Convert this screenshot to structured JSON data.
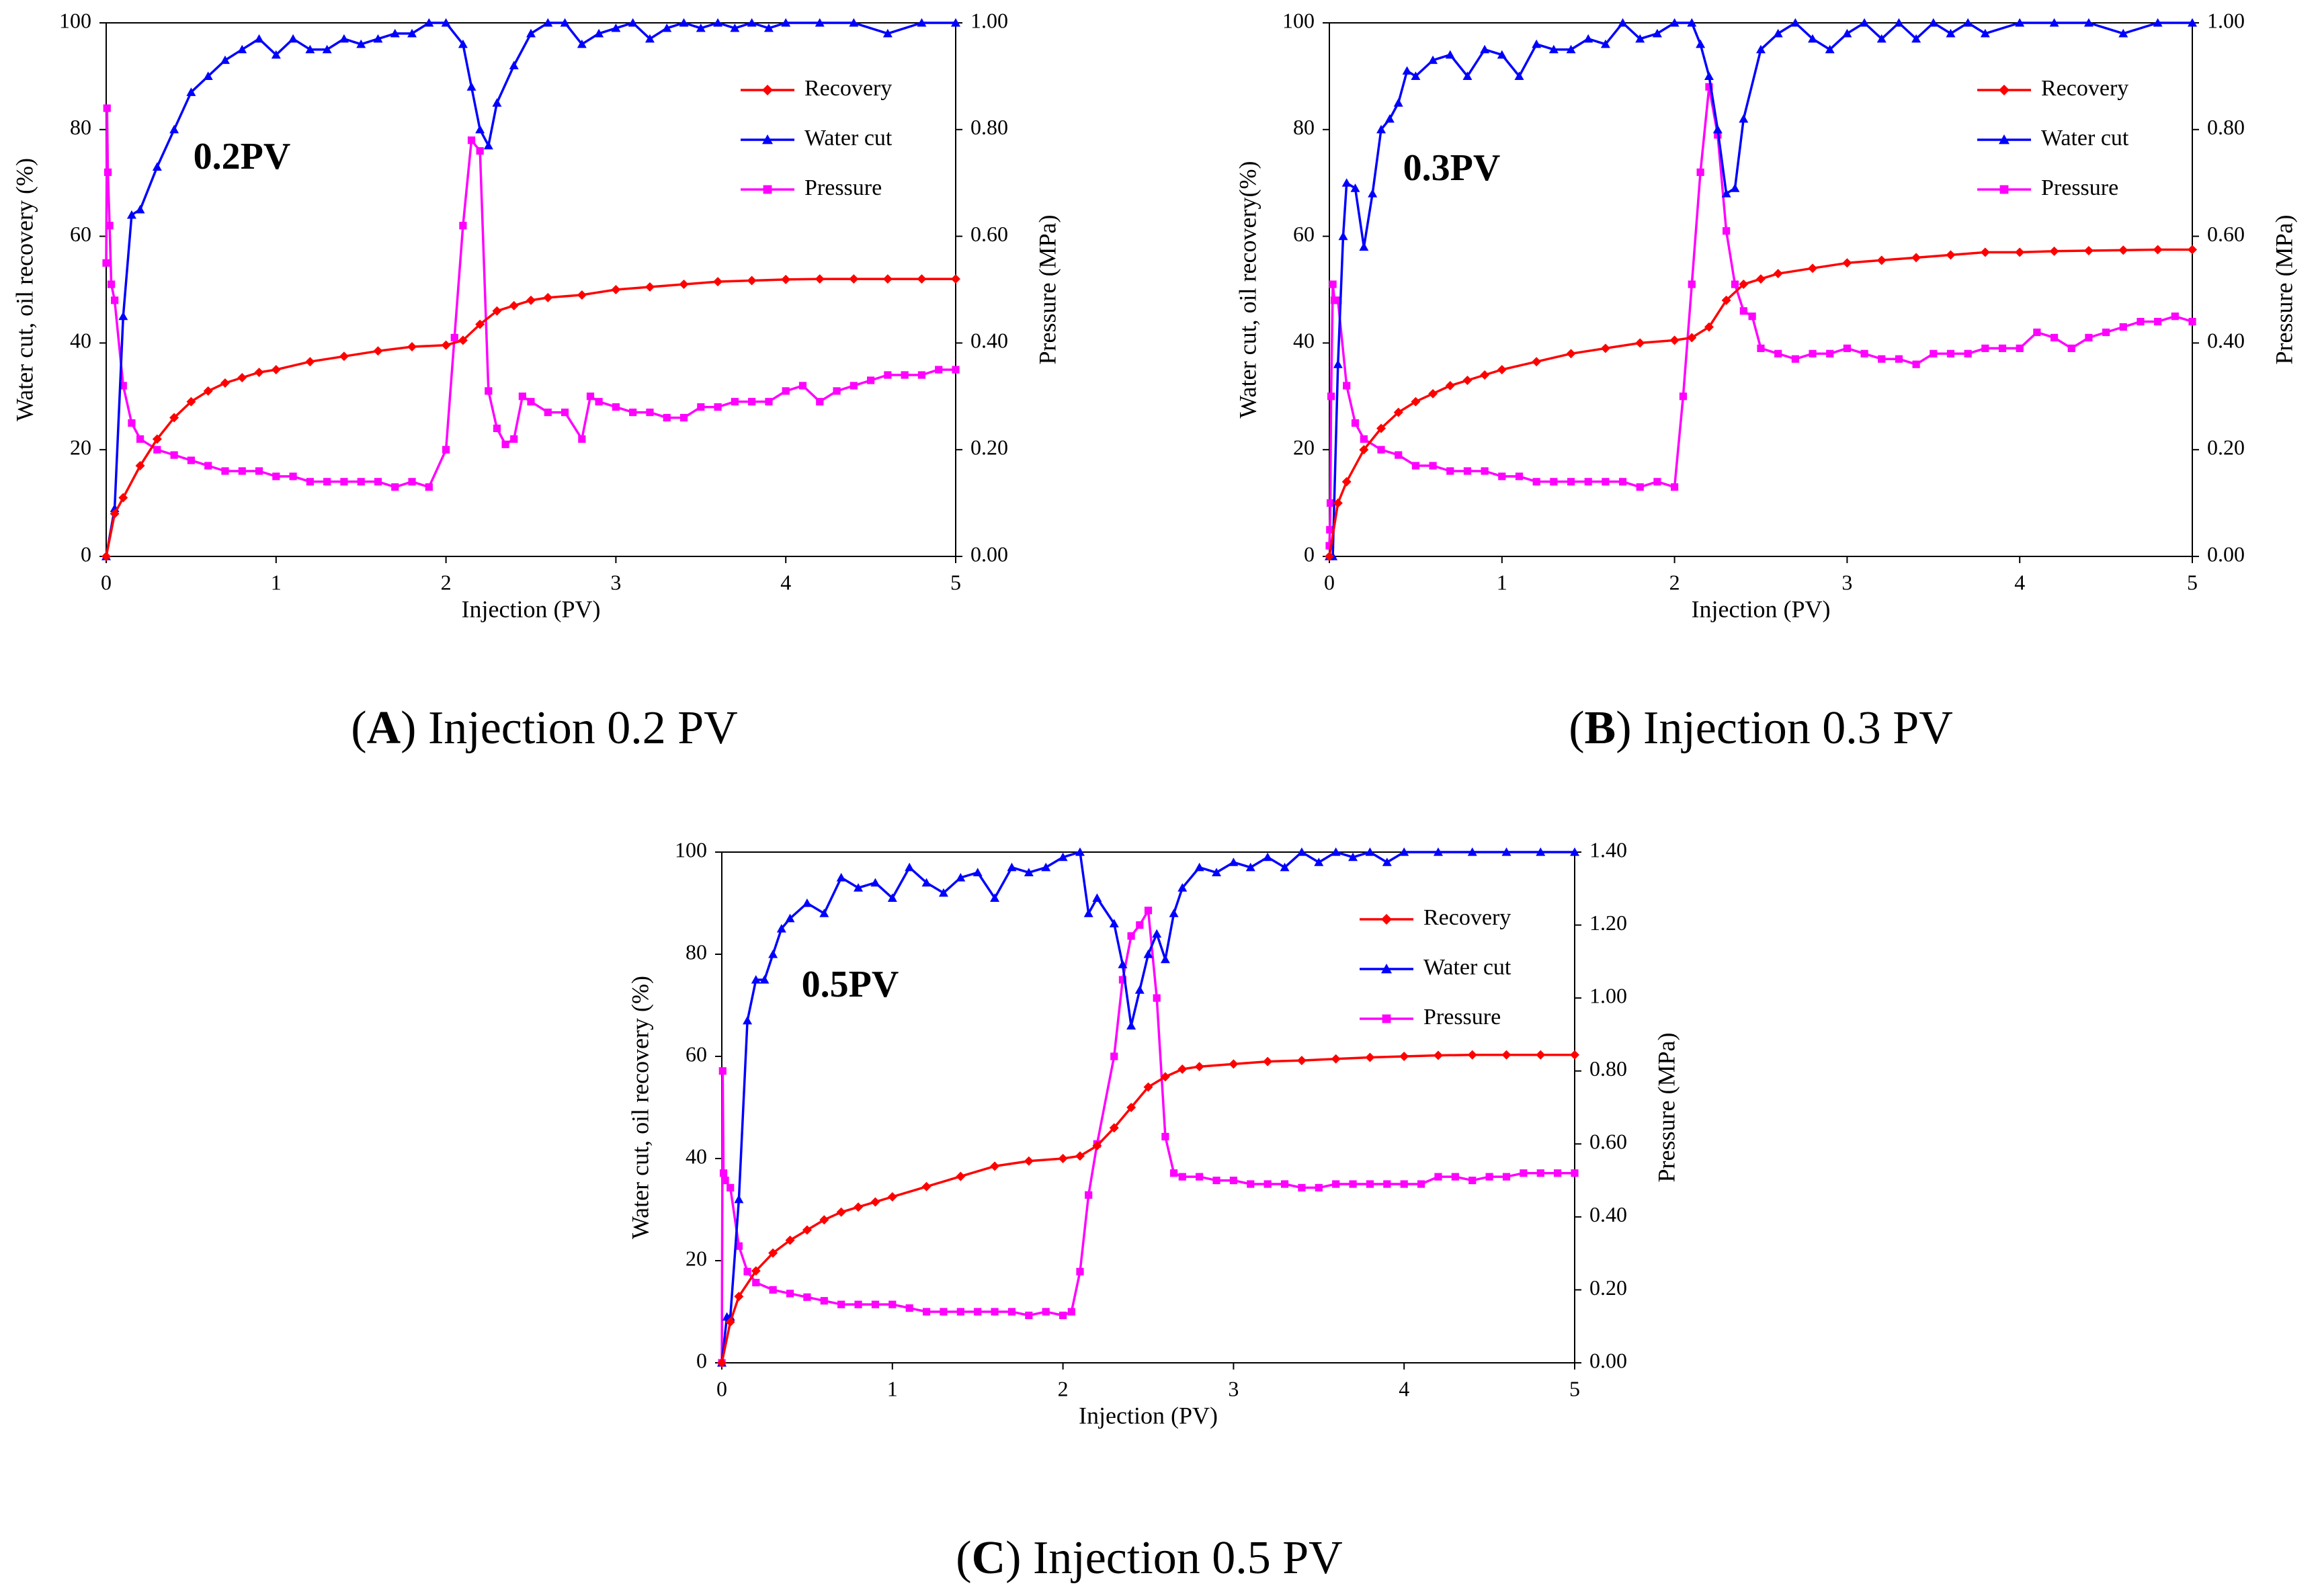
{
  "chart_data": [
    {
      "panel": "A",
      "type": "line",
      "annotation": "0.2PV",
      "caption": {
        "letter": "A",
        "text": ") Injection 0.2 PV"
      },
      "xlabel": "Injection (PV)",
      "ylabel": "Water cut, oil recovery (%)",
      "y2label": "Pressure (MPa)",
      "xlim": [
        0,
        5
      ],
      "ylim": [
        0,
        100
      ],
      "y2lim": [
        0,
        1.0
      ],
      "xticks": [
        "0",
        "1",
        "2",
        "3",
        "4",
        "5"
      ],
      "yticks": [
        "0",
        "20",
        "40",
        "60",
        "80",
        "100"
      ],
      "y2ticks": [
        "0.00",
        "0.20",
        "0.40",
        "0.60",
        "0.80",
        "1.00"
      ],
      "legend_position": "top-right",
      "series": [
        {
          "name": "Recovery",
          "axis": "left",
          "color": "#ff0000",
          "marker": "diamond",
          "x": [
            0,
            0.05,
            0.1,
            0.2,
            0.3,
            0.4,
            0.5,
            0.6,
            0.7,
            0.8,
            0.9,
            1.0,
            1.2,
            1.4,
            1.6,
            1.8,
            2.0,
            2.1,
            2.2,
            2.3,
            2.4,
            2.5,
            2.6,
            2.8,
            3.0,
            3.2,
            3.4,
            3.6,
            3.8,
            4.0,
            4.2,
            4.4,
            4.6,
            4.8,
            5.0
          ],
          "y": [
            0,
            8,
            11,
            17,
            22,
            26,
            29,
            31,
            32.5,
            33.5,
            34.5,
            35,
            36.5,
            37.5,
            38.5,
            39.3,
            39.6,
            40.5,
            43.5,
            46,
            47,
            48,
            48.5,
            49,
            50,
            50.5,
            51,
            51.5,
            51.7,
            51.9,
            52,
            52,
            52,
            52,
            52
          ]
        },
        {
          "name": "Water cut",
          "axis": "left",
          "color": "#0000ff",
          "marker": "triangle",
          "x": [
            0,
            0.05,
            0.1,
            0.15,
            0.2,
            0.3,
            0.4,
            0.5,
            0.6,
            0.7,
            0.8,
            0.9,
            1.0,
            1.1,
            1.2,
            1.3,
            1.4,
            1.5,
            1.6,
            1.7,
            1.8,
            1.9,
            2.0,
            2.1,
            2.15,
            2.2,
            2.25,
            2.3,
            2.4,
            2.5,
            2.6,
            2.7,
            2.8,
            2.9,
            3.0,
            3.1,
            3.2,
            3.3,
            3.4,
            3.5,
            3.6,
            3.7,
            3.8,
            3.9,
            4.0,
            4.2,
            4.4,
            4.6,
            4.8,
            5.0
          ],
          "y": [
            0,
            9,
            45,
            64,
            65,
            73,
            80,
            87,
            90,
            93,
            95,
            97,
            94,
            97,
            95,
            95,
            97,
            96,
            97,
            98,
            98,
            100,
            100,
            96,
            88,
            80,
            77,
            85,
            92,
            98,
            100,
            100,
            96,
            98,
            99,
            100,
            97,
            99,
            100,
            99,
            100,
            99,
            100,
            99,
            100,
            100,
            100,
            98,
            100,
            100
          ]
        },
        {
          "name": "Pressure",
          "axis": "right",
          "color": "#ff00ff",
          "marker": "square",
          "x": [
            0,
            0.005,
            0.01,
            0.02,
            0.03,
            0.05,
            0.1,
            0.15,
            0.2,
            0.3,
            0.4,
            0.5,
            0.6,
            0.7,
            0.8,
            0.9,
            1.0,
            1.1,
            1.2,
            1.3,
            1.4,
            1.5,
            1.6,
            1.7,
            1.8,
            1.9,
            2.0,
            2.05,
            2.1,
            2.15,
            2.2,
            2.25,
            2.3,
            2.35,
            2.4,
            2.45,
            2.5,
            2.6,
            2.7,
            2.8,
            2.85,
            2.9,
            3.0,
            3.1,
            3.2,
            3.3,
            3.4,
            3.5,
            3.6,
            3.7,
            3.8,
            3.9,
            4.0,
            4.1,
            4.2,
            4.3,
            4.4,
            4.5,
            4.6,
            4.7,
            4.8,
            4.9,
            5.0
          ],
          "y": [
            0.55,
            0.84,
            0.72,
            0.62,
            0.51,
            0.48,
            0.32,
            0.25,
            0.22,
            0.2,
            0.19,
            0.18,
            0.17,
            0.16,
            0.16,
            0.16,
            0.15,
            0.15,
            0.14,
            0.14,
            0.14,
            0.14,
            0.14,
            0.13,
            0.14,
            0.13,
            0.2,
            0.41,
            0.62,
            0.78,
            0.76,
            0.31,
            0.24,
            0.21,
            0.22,
            0.3,
            0.29,
            0.27,
            0.27,
            0.22,
            0.3,
            0.29,
            0.28,
            0.27,
            0.27,
            0.26,
            0.26,
            0.28,
            0.28,
            0.29,
            0.29,
            0.29,
            0.31,
            0.32,
            0.29,
            0.31,
            0.32,
            0.33,
            0.34,
            0.34,
            0.34,
            0.35,
            0.35
          ]
        }
      ]
    },
    {
      "panel": "B",
      "type": "line",
      "annotation": "0.3PV",
      "caption": {
        "letter": "B",
        "text": ") Injection 0.3 PV"
      },
      "xlabel": "Injection (PV)",
      "ylabel": "Water cut, oil recovery(%)",
      "y2label": "Pressure (MPa)",
      "xlim": [
        0,
        5
      ],
      "ylim": [
        0,
        100
      ],
      "y2lim": [
        0,
        1.0
      ],
      "xticks": [
        "0",
        "1",
        "2",
        "3",
        "4",
        "5"
      ],
      "yticks": [
        "0",
        "20",
        "40",
        "60",
        "80",
        "100"
      ],
      "y2ticks": [
        "0.00",
        "0.20",
        "0.40",
        "0.60",
        "0.80",
        "1.00"
      ],
      "legend_position": "top-right",
      "series": [
        {
          "name": "Recovery",
          "axis": "left",
          "color": "#ff0000",
          "marker": "diamond",
          "x": [
            0,
            0.05,
            0.1,
            0.2,
            0.3,
            0.4,
            0.5,
            0.6,
            0.7,
            0.8,
            0.9,
            1.0,
            1.2,
            1.4,
            1.6,
            1.8,
            2.0,
            2.1,
            2.2,
            2.3,
            2.4,
            2.5,
            2.6,
            2.8,
            3.0,
            3.2,
            3.4,
            3.6,
            3.8,
            4.0,
            4.2,
            4.4,
            4.6,
            4.8,
            5.0
          ],
          "y": [
            0,
            10,
            14,
            20,
            24,
            27,
            29,
            30.5,
            32,
            33,
            34,
            35,
            36.5,
            38,
            39,
            40,
            40.5,
            41,
            43,
            48,
            51,
            52,
            53,
            54,
            55,
            55.5,
            56,
            56.5,
            57,
            57,
            57.2,
            57.3,
            57.4,
            57.5,
            57.5
          ]
        },
        {
          "name": "Water cut",
          "axis": "left",
          "color": "#0000ff",
          "marker": "triangle",
          "x": [
            0,
            0.02,
            0.05,
            0.08,
            0.1,
            0.15,
            0.2,
            0.25,
            0.3,
            0.35,
            0.4,
            0.45,
            0.5,
            0.6,
            0.7,
            0.8,
            0.9,
            1.0,
            1.1,
            1.2,
            1.3,
            1.4,
            1.5,
            1.6,
            1.7,
            1.8,
            1.9,
            2.0,
            2.1,
            2.15,
            2.2,
            2.25,
            2.3,
            2.35,
            2.4,
            2.5,
            2.6,
            2.7,
            2.8,
            2.9,
            3.0,
            3.1,
            3.2,
            3.3,
            3.4,
            3.5,
            3.6,
            3.7,
            3.8,
            4.0,
            4.2,
            4.4,
            4.6,
            4.8,
            5.0
          ],
          "y": [
            0,
            0,
            36,
            60,
            70,
            69,
            58,
            68,
            80,
            82,
            85,
            91,
            90,
            93,
            94,
            90,
            95,
            94,
            90,
            96,
            95,
            95,
            97,
            96,
            100,
            97,
            98,
            100,
            100,
            96,
            90,
            80,
            68,
            69,
            82,
            95,
            98,
            100,
            97,
            95,
            98,
            100,
            97,
            100,
            97,
            100,
            98,
            100,
            98,
            100,
            100,
            100,
            98,
            100,
            100
          ]
        },
        {
          "name": "Pressure",
          "axis": "right",
          "color": "#ff00ff",
          "marker": "square",
          "x": [
            0,
            0.003,
            0.006,
            0.01,
            0.02,
            0.03,
            0.05,
            0.1,
            0.15,
            0.2,
            0.3,
            0.4,
            0.5,
            0.6,
            0.7,
            0.8,
            0.9,
            1.0,
            1.1,
            1.2,
            1.3,
            1.4,
            1.5,
            1.6,
            1.7,
            1.8,
            1.9,
            2.0,
            2.05,
            2.1,
            2.15,
            2.2,
            2.25,
            2.3,
            2.35,
            2.4,
            2.45,
            2.5,
            2.6,
            2.7,
            2.8,
            2.9,
            3.0,
            3.1,
            3.2,
            3.3,
            3.4,
            3.5,
            3.6,
            3.7,
            3.8,
            3.9,
            4.0,
            4.1,
            4.2,
            4.3,
            4.4,
            4.5,
            4.6,
            4.7,
            4.8,
            4.9,
            5.0
          ],
          "y": [
            0.02,
            0.05,
            0.1,
            0.3,
            0.51,
            0.48,
            0.48,
            0.32,
            0.25,
            0.22,
            0.2,
            0.19,
            0.17,
            0.17,
            0.16,
            0.16,
            0.16,
            0.15,
            0.15,
            0.14,
            0.14,
            0.14,
            0.14,
            0.14,
            0.14,
            0.13,
            0.14,
            0.13,
            0.3,
            0.51,
            0.72,
            0.88,
            0.79,
            0.61,
            0.51,
            0.46,
            0.45,
            0.39,
            0.38,
            0.37,
            0.38,
            0.38,
            0.39,
            0.38,
            0.37,
            0.37,
            0.36,
            0.38,
            0.38,
            0.38,
            0.39,
            0.39,
            0.39,
            0.42,
            0.41,
            0.39,
            0.41,
            0.42,
            0.43,
            0.44,
            0.44,
            0.45,
            0.44
          ]
        }
      ]
    },
    {
      "panel": "C",
      "type": "line",
      "annotation": "0.5PV",
      "caption": {
        "letter": "C",
        "text": ") Injection 0.5 PV"
      },
      "xlabel": "Injection (PV)",
      "ylabel": "Water cut, oil recovery (%)",
      "y2label": "Pressure (MPa)",
      "xlim": [
        0,
        5
      ],
      "ylim": [
        0,
        100
      ],
      "y2lim": [
        0,
        1.4
      ],
      "xticks": [
        "0",
        "1",
        "2",
        "3",
        "4",
        "5"
      ],
      "yticks": [
        "0",
        "20",
        "40",
        "60",
        "80",
        "100"
      ],
      "y2ticks": [
        "0.00",
        "0.20",
        "0.40",
        "0.60",
        "0.80",
        "1.00",
        "1.20",
        "1.40"
      ],
      "legend_position": "top-right",
      "series": [
        {
          "name": "Recovery",
          "axis": "left",
          "color": "#ff0000",
          "marker": "diamond",
          "x": [
            0,
            0.05,
            0.1,
            0.2,
            0.3,
            0.4,
            0.5,
            0.6,
            0.7,
            0.8,
            0.9,
            1.0,
            1.2,
            1.4,
            1.6,
            1.8,
            2.0,
            2.1,
            2.2,
            2.3,
            2.4,
            2.5,
            2.6,
            2.7,
            2.8,
            3.0,
            3.2,
            3.4,
            3.6,
            3.8,
            4.0,
            4.2,
            4.4,
            4.6,
            4.8,
            5.0
          ],
          "y": [
            0,
            8,
            13,
            18,
            21.5,
            24,
            26,
            28,
            29.5,
            30.5,
            31.5,
            32.5,
            34.5,
            36.5,
            38.5,
            39.5,
            40,
            40.5,
            42.5,
            46,
            50,
            54,
            56,
            57.5,
            58,
            58.5,
            59,
            59.2,
            59.5,
            59.8,
            60,
            60.2,
            60.3,
            60.3,
            60.3,
            60.3
          ]
        },
        {
          "name": "Water cut",
          "axis": "left",
          "color": "#0000ff",
          "marker": "triangle",
          "x": [
            0,
            0.03,
            0.05,
            0.1,
            0.15,
            0.2,
            0.25,
            0.3,
            0.35,
            0.4,
            0.5,
            0.6,
            0.7,
            0.8,
            0.9,
            1.0,
            1.1,
            1.2,
            1.3,
            1.4,
            1.5,
            1.6,
            1.7,
            1.8,
            1.9,
            2.0,
            2.1,
            2.15,
            2.2,
            2.3,
            2.35,
            2.4,
            2.45,
            2.5,
            2.55,
            2.6,
            2.65,
            2.7,
            2.8,
            2.9,
            3.0,
            3.1,
            3.2,
            3.3,
            3.4,
            3.5,
            3.6,
            3.7,
            3.8,
            3.9,
            4.0,
            4.2,
            4.4,
            4.6,
            4.8,
            5.0
          ],
          "y": [
            0,
            9,
            9,
            32,
            67,
            75,
            75,
            80,
            85,
            87,
            90,
            88,
            95,
            93,
            94,
            91,
            97,
            94,
            92,
            95,
            96,
            91,
            97,
            96,
            97,
            99,
            100,
            88,
            91,
            86,
            78,
            66,
            73,
            80,
            84,
            79,
            88,
            93,
            97,
            96,
            98,
            97,
            99,
            97,
            100,
            98,
            100,
            99,
            100,
            98,
            100,
            100,
            100,
            100,
            100,
            100
          ]
        },
        {
          "name": "Pressure",
          "axis": "right",
          "color": "#ff00ff",
          "marker": "square",
          "x": [
            0,
            0.005,
            0.01,
            0.02,
            0.05,
            0.1,
            0.15,
            0.2,
            0.3,
            0.4,
            0.5,
            0.6,
            0.7,
            0.8,
            0.9,
            1.0,
            1.1,
            1.2,
            1.3,
            1.4,
            1.5,
            1.6,
            1.7,
            1.8,
            1.9,
            2.0,
            2.05,
            2.1,
            2.15,
            2.2,
            2.3,
            2.35,
            2.4,
            2.45,
            2.5,
            2.55,
            2.6,
            2.65,
            2.7,
            2.8,
            2.9,
            3.0,
            3.1,
            3.2,
            3.3,
            3.4,
            3.5,
            3.6,
            3.7,
            3.8,
            3.9,
            4.0,
            4.1,
            4.2,
            4.3,
            4.4,
            4.5,
            4.6,
            4.7,
            4.8,
            4.9,
            5.0
          ],
          "y": [
            0.0,
            0.8,
            0.52,
            0.5,
            0.48,
            0.32,
            0.25,
            0.22,
            0.2,
            0.19,
            0.18,
            0.17,
            0.16,
            0.16,
            0.16,
            0.16,
            0.15,
            0.14,
            0.14,
            0.14,
            0.14,
            0.14,
            0.14,
            0.13,
            0.14,
            0.13,
            0.14,
            0.25,
            0.46,
            0.6,
            0.84,
            1.05,
            1.17,
            1.2,
            1.24,
            1.0,
            0.62,
            0.52,
            0.51,
            0.51,
            0.5,
            0.5,
            0.49,
            0.49,
            0.49,
            0.48,
            0.48,
            0.49,
            0.49,
            0.49,
            0.49,
            0.49,
            0.49,
            0.51,
            0.51,
            0.5,
            0.51,
            0.51,
            0.52,
            0.52,
            0.52,
            0.52
          ]
        }
      ]
    }
  ]
}
